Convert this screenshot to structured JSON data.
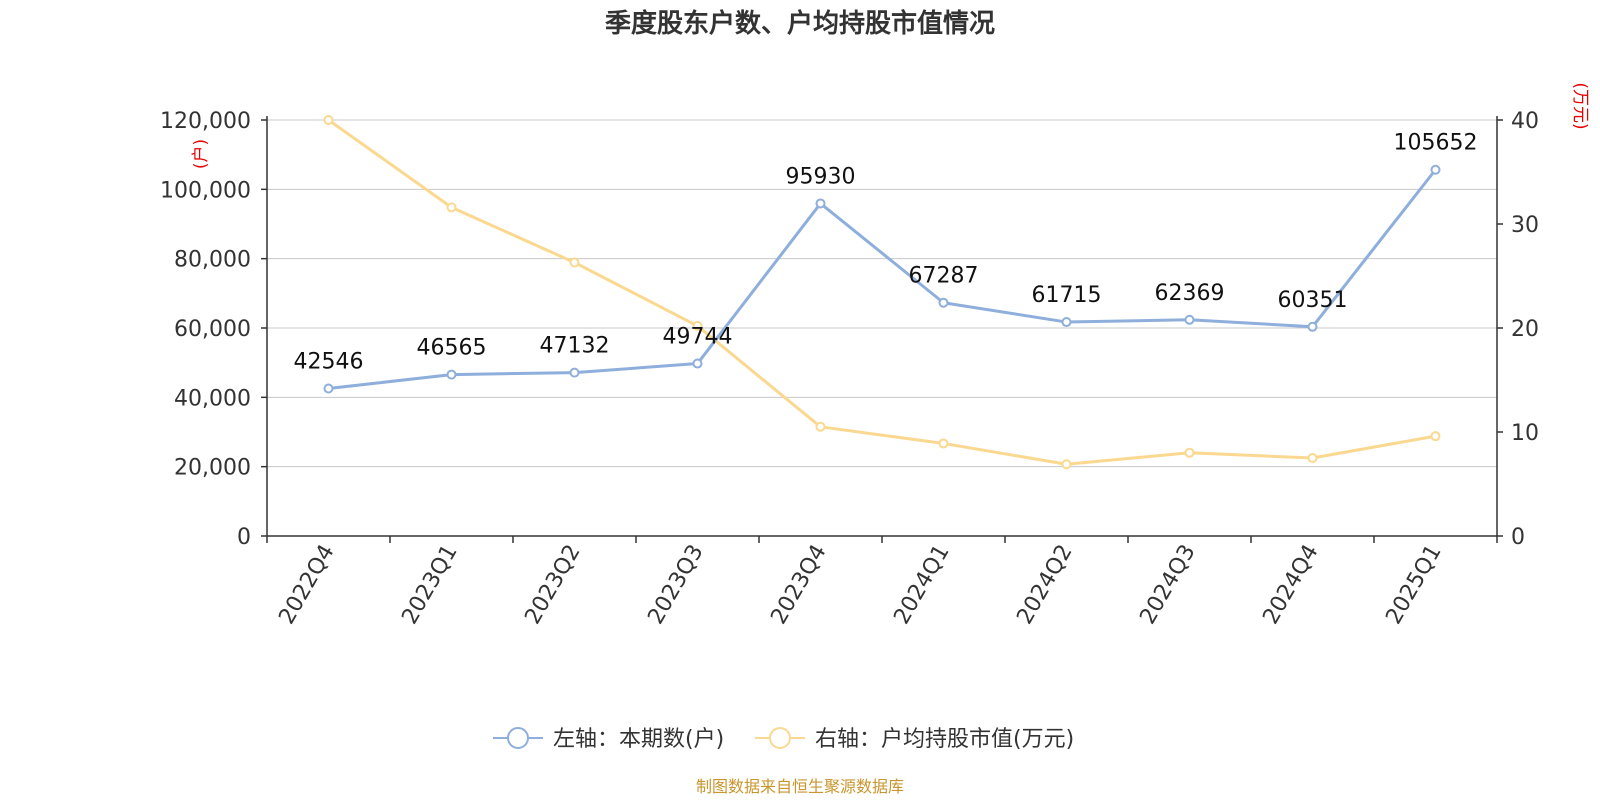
{
  "colors": {
    "left_series": "#8eaedc",
    "right_series": "#fbd88f",
    "axis_unit": "#e60000",
    "source": "#c8962d",
    "grid": "#c8c8c8"
  },
  "chart_data": {
    "type": "line",
    "title": "季度股东户数、户均持股市值情况",
    "categories": [
      "2022Q4",
      "2023Q1",
      "2023Q2",
      "2023Q3",
      "2023Q4",
      "2024Q1",
      "2024Q2",
      "2024Q3",
      "2024Q4",
      "2025Q1"
    ],
    "y_left": {
      "unit": "(户)",
      "ylim": [
        0,
        120000
      ],
      "ticks": [
        0,
        20000,
        40000,
        60000,
        80000,
        100000,
        120000
      ],
      "tick_labels": [
        "0",
        "20,000",
        "40,000",
        "60,000",
        "80,000",
        "100,000",
        "120,000"
      ]
    },
    "y_right": {
      "unit": "(万元)",
      "ylim": [
        0,
        40
      ],
      "ticks": [
        0,
        10,
        20,
        30,
        40
      ],
      "tick_labels": [
        "0",
        "10",
        "20",
        "30",
        "40"
      ]
    },
    "series": [
      {
        "name": "左轴：本期数(户)",
        "axis": "left",
        "values": [
          42546,
          46565,
          47132,
          49744,
          95930,
          67287,
          61715,
          62369,
          60351,
          105652
        ],
        "data_labels": [
          "42546",
          "46565",
          "47132",
          "49744",
          "95930",
          "67287",
          "61715",
          "62369",
          "60351",
          "105652"
        ]
      },
      {
        "name": "右轴：户均持股市值(万元)",
        "axis": "right",
        "values": [
          40.0,
          31.6,
          26.3,
          20.2,
          10.5,
          8.9,
          6.9,
          8.0,
          7.5,
          9.6
        ]
      }
    ],
    "grid": true,
    "legend_position": "bottom-center"
  },
  "source_text": "制图数据来自恒生聚源数据库"
}
